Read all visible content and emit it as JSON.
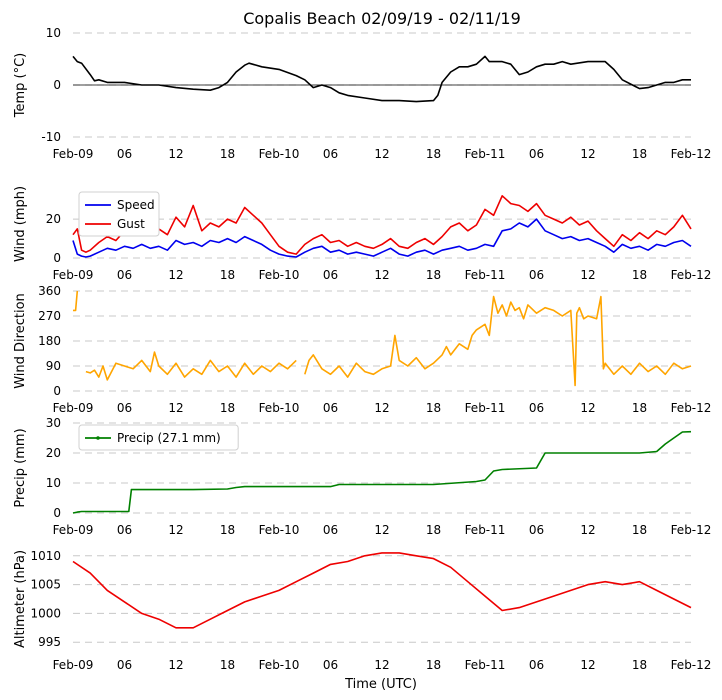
{
  "chart_data": {
    "type": "line",
    "title": "Copalis Beach 02/09/19 - 02/11/19",
    "xlabel": "Time (UTC)",
    "x_tick_labels": [
      "Feb-09",
      "06",
      "12",
      "18",
      "Feb-10",
      "06",
      "12",
      "18",
      "Feb-11",
      "06",
      "12",
      "18",
      "Feb-12"
    ],
    "x_tick_hours": [
      0,
      6,
      12,
      18,
      24,
      30,
      36,
      42,
      48,
      54,
      60,
      66,
      72
    ],
    "xlim": [
      0,
      72
    ],
    "panels": [
      {
        "id": "temp",
        "ylabel": "Temp ($^\\circ$C)",
        "ylim": [
          -10,
          10
        ],
        "yticks": [
          -10,
          0,
          10
        ],
        "zero_line": true,
        "series": [
          {
            "color": "#000000",
            "x": [
              0,
              0.5,
              1,
              2,
              2.5,
              3,
              4,
              6,
              8,
              10,
              12,
              14,
              16,
              17,
              18,
              19,
              20,
              20.5,
              22,
              24,
              26,
              27,
              28,
              29,
              30,
              31,
              32,
              34,
              36,
              38,
              40,
              42,
              42.5,
              43,
              44,
              45,
              46,
              47,
              48,
              48.5,
              49,
              50,
              51,
              52,
              53,
              54,
              55,
              56,
              57,
              58,
              60,
              62,
              63,
              64,
              66,
              67,
              68,
              69,
              70,
              71,
              72
            ],
            "y": [
              5.5,
              4.5,
              4.2,
              2.0,
              0.8,
              1.0,
              0.5,
              0.5,
              0.0,
              0.0,
              -0.5,
              -0.8,
              -1.0,
              -0.5,
              0.5,
              2.5,
              3.8,
              4.2,
              3.5,
              3.0,
              1.8,
              1.0,
              -0.5,
              0.0,
              -0.5,
              -1.5,
              -2.0,
              -2.5,
              -3.0,
              -3.0,
              -3.2,
              -3.0,
              -2.0,
              0.5,
              2.5,
              3.5,
              3.5,
              4.0,
              5.5,
              4.5,
              4.5,
              4.5,
              4.0,
              2.0,
              2.5,
              3.5,
              4.0,
              4.0,
              4.5,
              4.0,
              4.5,
              4.5,
              3.0,
              1.0,
              -0.7,
              -0.5,
              0.0,
              0.5,
              0.5,
              1.0,
              1.0
            ]
          }
        ]
      },
      {
        "id": "wind",
        "ylabel": "Wind (mph)",
        "ylim": [
          0,
          35
        ],
        "yticks": [
          0,
          20
        ],
        "legend_position": "upper-left",
        "series": [
          {
            "name": "Speed",
            "color": "#0000ee",
            "x": [
              0,
              0.5,
              1,
              1.5,
              2,
              3,
              4,
              5,
              6,
              7,
              8,
              9,
              10,
              11,
              12,
              13,
              14,
              15,
              16,
              17,
              18,
              19,
              20,
              21,
              22,
              23,
              24,
              25,
              26,
              27,
              28,
              29,
              30,
              31,
              32,
              33,
              34,
              35,
              36,
              37,
              38,
              39,
              40,
              41,
              42,
              43,
              44,
              45,
              46,
              47,
              48,
              49,
              50,
              51,
              52,
              53,
              54,
              55,
              56,
              57,
              58,
              59,
              60,
              61,
              62,
              63,
              64,
              65,
              66,
              67,
              68,
              69,
              70,
              71,
              72
            ],
            "y": [
              9,
              2,
              1,
              0.5,
              1,
              3,
              5,
              4,
              6,
              5,
              7,
              5,
              6,
              4,
              9,
              7,
              8,
              6,
              9,
              8,
              10,
              8,
              11,
              9,
              7,
              4,
              2,
              1,
              0.5,
              3,
              5,
              6,
              3,
              4,
              2,
              3,
              2,
              1,
              3,
              5,
              2,
              1,
              3,
              4,
              2,
              4,
              5,
              6,
              4,
              5,
              7,
              6,
              14,
              15,
              18,
              16,
              20,
              14,
              12,
              10,
              11,
              9,
              10,
              8,
              6,
              3,
              7,
              5,
              6,
              4,
              7,
              6,
              8,
              9,
              6
            ]
          },
          {
            "name": "Gust",
            "color": "#ee0000",
            "x": [
              0,
              0.5,
              1,
              1.5,
              2,
              3,
              4,
              5,
              6,
              7,
              8,
              9,
              10,
              11,
              12,
              13,
              14,
              15,
              16,
              17,
              18,
              19,
              20,
              21,
              22,
              23,
              24,
              25,
              26,
              27,
              28,
              29,
              30,
              31,
              32,
              33,
              34,
              35,
              36,
              37,
              38,
              39,
              40,
              41,
              42,
              43,
              44,
              45,
              46,
              47,
              48,
              49,
              50,
              51,
              52,
              53,
              54,
              55,
              56,
              57,
              58,
              59,
              60,
              61,
              62,
              63,
              64,
              65,
              66,
              67,
              68,
              69,
              70,
              71,
              72
            ],
            "y": [
              12,
              15,
              4,
              3,
              4,
              8,
              11,
              9,
              14,
              13,
              16,
              13,
              15,
              12,
              21,
              16,
              27,
              14,
              18,
              16,
              20,
              18,
              26,
              22,
              18,
              12,
              6,
              3,
              2,
              7,
              10,
              12,
              8,
              9,
              6,
              8,
              6,
              5,
              7,
              10,
              6,
              5,
              8,
              10,
              7,
              11,
              16,
              18,
              14,
              17,
              25,
              22,
              32,
              28,
              27,
              24,
              28,
              22,
              20,
              18,
              21,
              17,
              19,
              14,
              10,
              6,
              12,
              9,
              13,
              10,
              14,
              12,
              16,
              22,
              15
            ]
          }
        ]
      },
      {
        "id": "direction",
        "ylabel": "Wind Direction",
        "ylim": [
          0,
          360
        ],
        "yticks": [
          0,
          90,
          180,
          270,
          360
        ],
        "series": [
          {
            "color": "#ffa500",
            "segments": [
              {
                "x": [
                  0,
                  0.3,
                  0.5
                ],
                "y": [
                  290,
                  290,
                  360
                ]
              },
              {
                "x": [
                  1.5,
                  2,
                  2.5,
                  3,
                  3.5,
                  4,
                  5,
                  6,
                  7,
                  8,
                  9,
                  9.5,
                  10,
                  11,
                  12,
                  13,
                  14,
                  15,
                  16,
                  17,
                  18,
                  19,
                  20,
                  21,
                  22,
                  23,
                  24,
                  25,
                  26
                ],
                "y": [
                  70,
                  65,
                  75,
                  50,
                  90,
                  40,
                  100,
                  90,
                  80,
                  110,
                  70,
                  140,
                  90,
                  60,
                  100,
                  50,
                  80,
                  60,
                  110,
                  70,
                  90,
                  50,
                  100,
                  60,
                  90,
                  70,
                  100,
                  80,
                  110
                ]
              },
              {
                "x": [
                  27,
                  27.5,
                  28,
                  29,
                  30,
                  31,
                  32,
                  33,
                  34,
                  35,
                  36,
                  37,
                  37.5,
                  38,
                  39,
                  40,
                  41,
                  42,
                  43,
                  43.5,
                  44,
                  45,
                  46,
                  46.5,
                  47,
                  48,
                  48.5,
                  49,
                  49.5,
                  50,
                  50.5,
                  51,
                  51.5,
                  52,
                  52.5,
                  53,
                  54,
                  55,
                  56,
                  57,
                  58,
                  58.5,
                  58.7,
                  59,
                  59.5,
                  60,
                  61,
                  61.5,
                  61.8,
                  62,
                  63,
                  64,
                  65,
                  66,
                  67,
                  68,
                  69,
                  70,
                  71,
                  72
                ],
                "y": [
                  60,
                  110,
                  130,
                  80,
                  60,
                  90,
                  50,
                  100,
                  70,
                  60,
                  80,
                  90,
                  200,
                  110,
                  90,
                  120,
                  80,
                  100,
                  130,
                  160,
                  130,
                  170,
                  150,
                  200,
                  220,
                  240,
                  200,
                  340,
                  280,
                  310,
                  270,
                  320,
                  290,
                  300,
                  260,
                  310,
                  280,
                  300,
                  290,
                  270,
                  290,
                  20,
                  280,
                  300,
                  260,
                  270,
                  260,
                  340,
                  80,
                  100,
                  60,
                  90,
                  60,
                  100,
                  70,
                  90,
                  60,
                  100,
                  80,
                  90
                ]
              }
            ]
          }
        ]
      },
      {
        "id": "precip",
        "ylabel": "Precip (mm)",
        "ylim": [
          0,
          30
        ],
        "yticks": [
          0,
          10,
          20,
          30
        ],
        "legend_position": "upper-left",
        "series": [
          {
            "name": "Precip (27.1 mm)",
            "color": "#008000",
            "x": [
              0,
              0.5,
              1,
              6.5,
              6.8,
              14,
              18,
              19,
              20,
              30,
              31,
              33,
              42,
              47,
              48,
              49,
              50,
              54,
              55,
              56,
              60,
              66,
              68,
              69,
              70,
              71,
              72
            ],
            "y": [
              0,
              0.3,
              0.5,
              0.5,
              7.8,
              7.8,
              8.0,
              8.5,
              8.8,
              8.8,
              9.5,
              9.5,
              9.5,
              10.5,
              11.0,
              14.0,
              14.5,
              15.0,
              20.0,
              20.0,
              20.0,
              20.0,
              20.5,
              23.0,
              25.0,
              27.0,
              27.1
            ]
          }
        ]
      },
      {
        "id": "altimeter",
        "ylabel": "Altimeter (hPa)",
        "ylim": [
          994,
          1011
        ],
        "yticks": [
          995,
          1000,
          1005,
          1010
        ],
        "series": [
          {
            "color": "#ee0000",
            "x": [
              0,
              2,
              4,
              6,
              8,
              10,
              12,
              14,
              16,
              18,
              20,
              22,
              24,
              26,
              28,
              30,
              32,
              34,
              36,
              38,
              40,
              42,
              44,
              46,
              48,
              50,
              52,
              54,
              56,
              58,
              60,
              62,
              64,
              66,
              68,
              70,
              72
            ],
            "y": [
              1009,
              1007,
              1004,
              1002,
              1000,
              999,
              997.5,
              997.5,
              999,
              1000.5,
              1002,
              1003,
              1004,
              1005.5,
              1007,
              1008.5,
              1009,
              1010,
              1010.5,
              1010.5,
              1010,
              1009.5,
              1008,
              1005.5,
              1003,
              1000.5,
              1001,
              1002,
              1003,
              1004,
              1005,
              1005.5,
              1005,
              1005.5,
              1004,
              1002.5,
              1001
            ]
          }
        ]
      }
    ]
  }
}
